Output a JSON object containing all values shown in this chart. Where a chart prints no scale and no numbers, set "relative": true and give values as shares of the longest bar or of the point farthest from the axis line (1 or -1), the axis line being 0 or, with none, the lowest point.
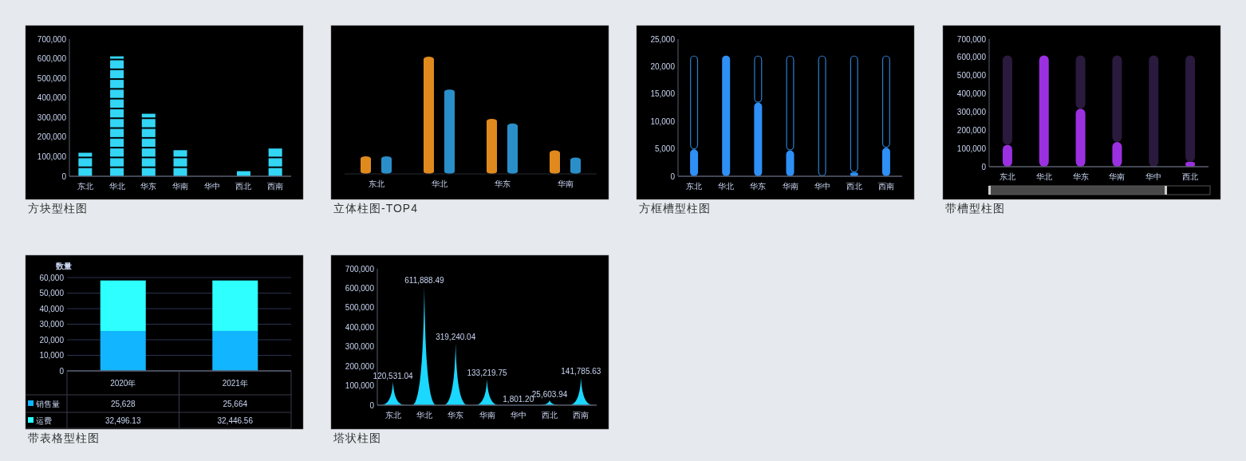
{
  "chart_data": [
    {
      "type": "bar",
      "title": "方块型柱图",
      "categories": [
        "东北",
        "华北",
        "华东",
        "华南",
        "华中",
        "西北",
        "西南"
      ],
      "values": [
        120000,
        612000,
        319000,
        133000,
        null,
        26000,
        142000
      ],
      "color": "#33d6f5",
      "ylim": [
        0,
        700000
      ],
      "yticks": [
        {
          "value": 0,
          "label": "0"
        },
        {
          "value": 100000,
          "label": "100,000"
        },
        {
          "value": 200000,
          "label": "200,000"
        },
        {
          "value": 300000,
          "label": "300,000"
        },
        {
          "value": 400000,
          "label": "400,000"
        },
        {
          "value": 500000,
          "label": "500,000"
        },
        {
          "value": 600000,
          "label": "600,000"
        },
        {
          "value": 700000,
          "label": "700,000"
        }
      ]
    },
    {
      "type": "bar",
      "title": "立体柱图-TOP4",
      "relative": true,
      "categories": [
        "东北",
        "华北",
        "华东",
        "华南"
      ],
      "series": [
        {
          "color": "#e08a1e",
          "values": [
            0.15,
            1,
            0.47,
            0.2
          ]
        },
        {
          "color": "#2a8fc9",
          "values": [
            0.15,
            0.72,
            0.43,
            0.14
          ]
        }
      ]
    },
    {
      "type": "bar",
      "title": "方框槽型柱图",
      "categories": [
        "东北",
        "华北",
        "华东",
        "华南",
        "华中",
        "西北",
        "西南"
      ],
      "stacked": true,
      "series": [
        {
          "color": "#2e8ff5",
          "values": [
            4900,
            22000,
            13400,
            4700,
            0,
            700,
            5200
          ]
        },
        {
          "color": "#2a7fd0",
          "values": [
            17100,
            0,
            8600,
            17300,
            22000,
            21300,
            16800
          ]
        }
      ],
      "ylim": [
        0,
        25000
      ],
      "yticks": [
        {
          "value": 0,
          "label": "0"
        },
        {
          "value": 5000,
          "label": "5,000"
        },
        {
          "value": 10000,
          "label": "10,000"
        },
        {
          "value": 15000,
          "label": "15,000"
        },
        {
          "value": 20000,
          "label": "20,000"
        },
        {
          "value": 25000,
          "label": "25,000"
        }
      ]
    },
    {
      "type": "bar",
      "title": "带槽型柱图",
      "categories": [
        "东北",
        "华北",
        "华东",
        "华南",
        "华中",
        "西北"
      ],
      "stacked": true,
      "series": [
        {
          "color": "#9b30e0",
          "values": [
            120000,
            610000,
            318000,
            136000,
            0,
            26000
          ]
        },
        {
          "color": "#2a1a3e",
          "values": [
            490000,
            0,
            292000,
            474000,
            610000,
            584000
          ]
        }
      ],
      "ylim": [
        0,
        700000
      ],
      "yticks": [
        {
          "value": 0,
          "label": "0"
        },
        {
          "value": 100000,
          "label": "100,000"
        },
        {
          "value": 200000,
          "label": "200,000"
        },
        {
          "value": 300000,
          "label": "300,000"
        },
        {
          "value": 400000,
          "label": "400,000"
        },
        {
          "value": 500000,
          "label": "500,000"
        },
        {
          "value": 600000,
          "label": "600,000"
        },
        {
          "value": 700000,
          "label": "700,000"
        }
      ]
    },
    {
      "type": "bar",
      "title": "带表格型柱图",
      "ylabel": "数量",
      "stacked": true,
      "legend": "bottom left",
      "grid": "y",
      "categories": [
        "2020年",
        "2021年"
      ],
      "series": [
        {
          "name": "销售量",
          "color": "#12b5ff",
          "values": [
            25628,
            25664
          ],
          "value_labels": [
            "25,628",
            "25,664"
          ]
        },
        {
          "name": "运费",
          "color": "#2effff",
          "values": [
            32496.13,
            32446.56
          ],
          "value_labels": [
            "32,496.13",
            "32,446.56"
          ]
        }
      ],
      "ylim": [
        0,
        60000
      ],
      "yticks": [
        {
          "value": 0,
          "label": "0"
        },
        {
          "value": 10000,
          "label": "10,000"
        },
        {
          "value": 20000,
          "label": "20,000"
        },
        {
          "value": 30000,
          "label": "30,000"
        },
        {
          "value": 40000,
          "label": "40,000"
        },
        {
          "value": 50000,
          "label": "50,000"
        },
        {
          "value": 60000,
          "label": "60,000"
        }
      ]
    },
    {
      "type": "bar",
      "title": "塔状柱图",
      "categories": [
        "东北",
        "华北",
        "华东",
        "华南",
        "华中",
        "西北",
        "西南"
      ],
      "values": [
        120531.04,
        611888.49,
        319240.04,
        133219.75,
        1801.2,
        25603.94,
        141785.63
      ],
      "value_labels": [
        "120,531.04",
        "611,888.49",
        "319,240.04",
        "133,219.75",
        "1,801.20",
        "25,603.94",
        "141,785.63"
      ],
      "color": "#1ad8ff",
      "ylim": [
        0,
        700000
      ],
      "yticks": [
        {
          "value": 0,
          "label": "0"
        },
        {
          "value": 100000,
          "label": "100,000"
        },
        {
          "value": 200000,
          "label": "200,000"
        },
        {
          "value": 300000,
          "label": "300,000"
        },
        {
          "value": 400000,
          "label": "400,000"
        },
        {
          "value": 500000,
          "label": "500,000"
        },
        {
          "value": 600000,
          "label": "600,000"
        },
        {
          "value": 700000,
          "label": "700,000"
        }
      ]
    }
  ]
}
